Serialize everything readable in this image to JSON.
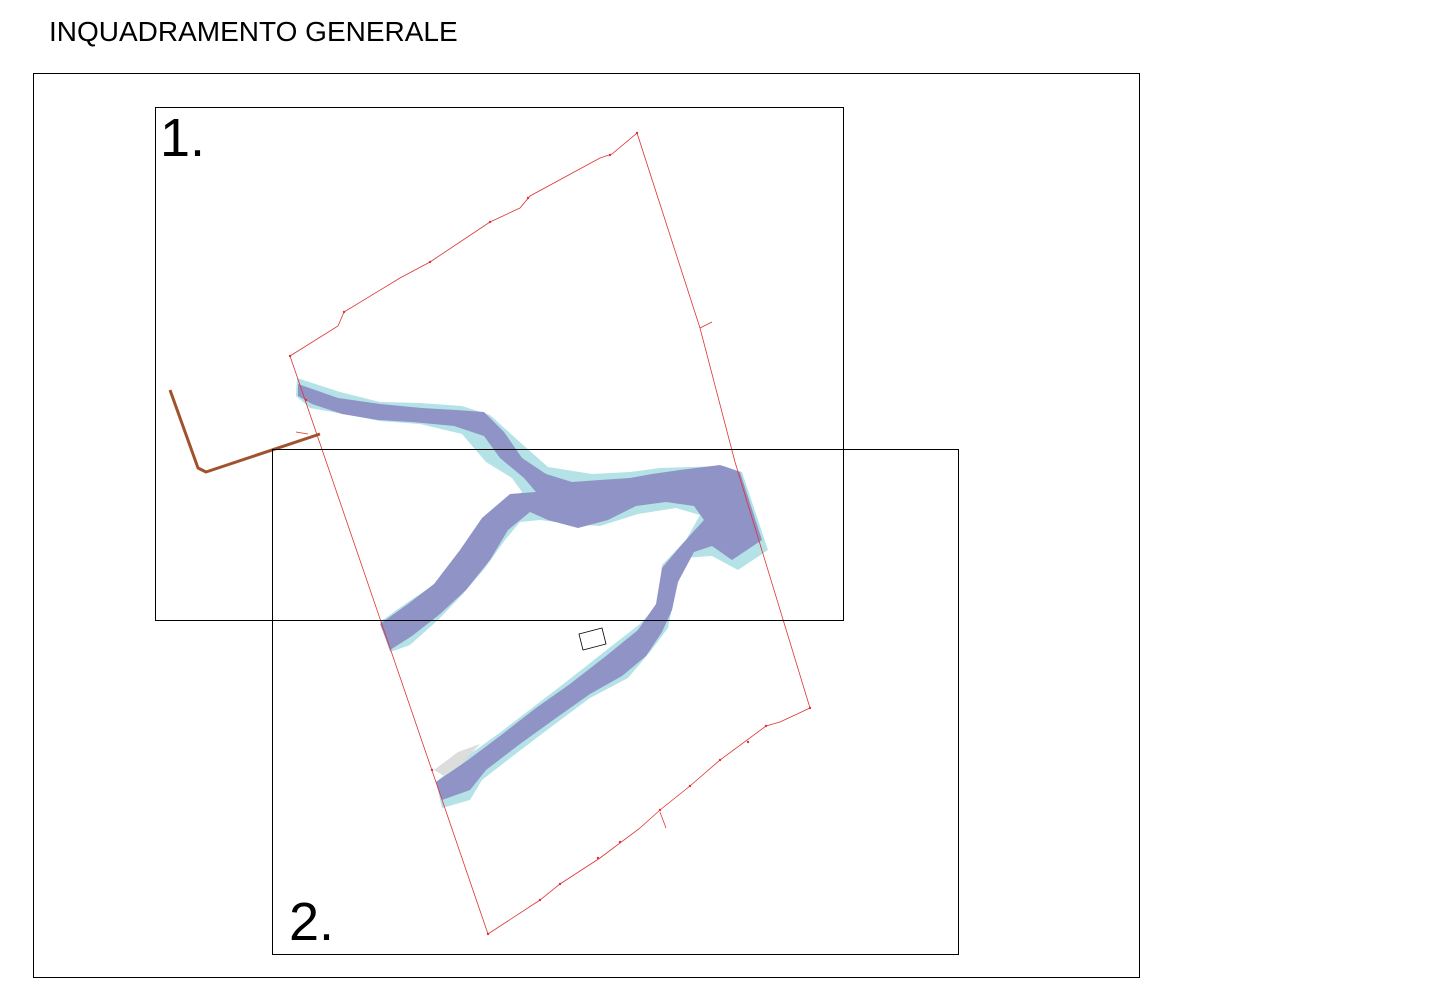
{
  "title": "INQUADRAMENTO GENERALE",
  "sheets": [
    {
      "label": "1."
    },
    {
      "label": "2."
    }
  ],
  "colors": {
    "frame": "#000000",
    "boundary": "#dd3333",
    "river_core": "#8f93c6",
    "river_bank": "#b4e2e6",
    "road": "#a0522d",
    "gravel": "#dddddd"
  }
}
